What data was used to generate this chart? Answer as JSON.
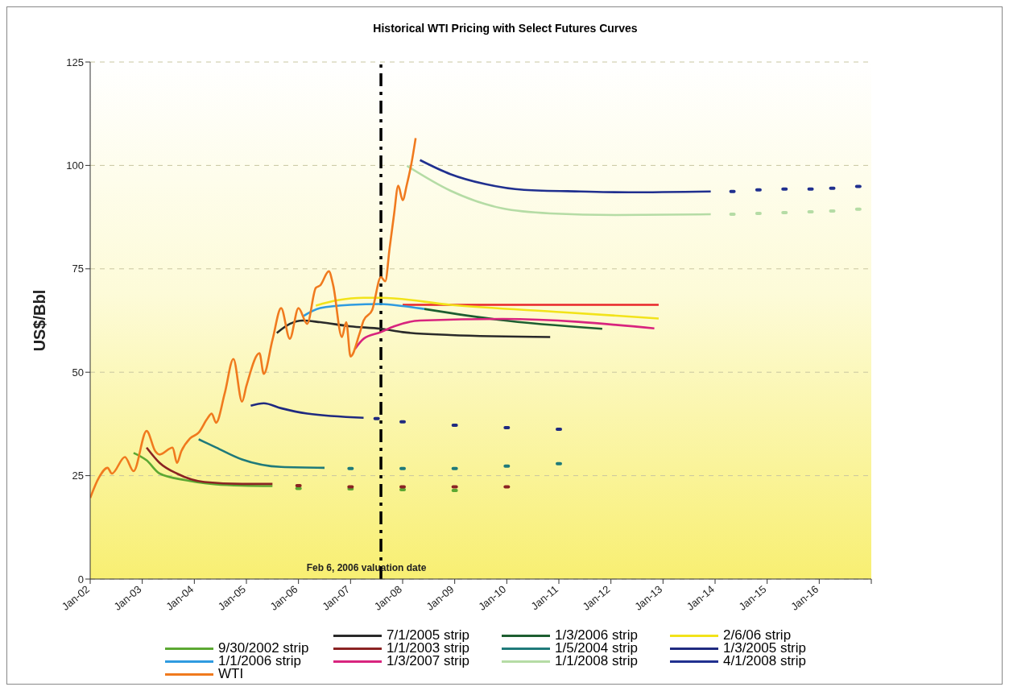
{
  "chart_data": {
    "type": "line",
    "title": "Historical WTI Pricing with Select Futures Curves",
    "ylabel": "US$/Bbl",
    "xlim": [
      "2002-01",
      "2017-01"
    ],
    "xticks": [
      {
        "value": "2002-01",
        "label": "Jan-02"
      },
      {
        "value": "2003-01",
        "label": "Jan-03"
      },
      {
        "value": "2004-01",
        "label": "Jan-04"
      },
      {
        "value": "2005-01",
        "label": "Jan-05"
      },
      {
        "value": "2006-01",
        "label": "Jan-06"
      },
      {
        "value": "2007-01",
        "label": "Jan-07"
      },
      {
        "value": "2008-01",
        "label": "Jan-08"
      },
      {
        "value": "2009-01",
        "label": "Jan-09"
      },
      {
        "value": "2010-01",
        "label": "Jan-10"
      },
      {
        "value": "2011-01",
        "label": "Jan-11"
      },
      {
        "value": "2012-01",
        "label": "Jan-12"
      },
      {
        "value": "2013-01",
        "label": "Jan-13"
      },
      {
        "value": "2014-01",
        "label": "Jan-14"
      },
      {
        "value": "2015-01",
        "label": "Jan-15"
      },
      {
        "value": "2016-01",
        "label": "Jan-16"
      },
      {
        "value": "2017-01",
        "label": null
      }
    ],
    "ylim": [
      0,
      125
    ],
    "yticks": [
      0,
      25,
      50,
      75,
      100,
      125
    ],
    "grid": "y",
    "legend": "bottom",
    "line_style": "solid",
    "ref_lines": [
      {
        "axis": "x",
        "value": "2007-08",
        "label": "Feb 6, 2006 valuation date",
        "color": "#000000",
        "line_style": "dashdot"
      }
    ],
    "series": [
      {
        "color": "#e8262a",
        "x": [
          "2008-01",
          "2010-06",
          "2012-12"
        ],
        "values": [
          66.3,
          66.3,
          66.3
        ]
      },
      {
        "name": "7/1/2005 strip",
        "color": "#2a2a2a",
        "x": [
          "2005-08",
          "2005-11",
          "2006-02",
          "2006-06",
          "2007-01",
          "2007-08",
          "2008-01",
          "2008-12",
          "2010-11"
        ],
        "values": [
          59.5,
          61.7,
          62.5,
          62.1,
          61.1,
          60.5,
          59.7,
          59.0,
          58.5
        ]
      },
      {
        "name": "1/3/2006 strip",
        "color": "#1d5e30",
        "x": [
          "2008-06",
          "2009-11",
          "2011-11"
        ],
        "values": [
          65.3,
          62.7,
          60.5
        ]
      },
      {
        "name": "2/6/06 strip",
        "color": "#f2e31a",
        "x": [
          "2006-05",
          "2006-10",
          "2007-04",
          "2007-08",
          "2008-12",
          "2011-02",
          "2012-12"
        ],
        "values": [
          66.1,
          67.4,
          68.0,
          68.0,
          66.3,
          64.5,
          63.0
        ]
      },
      {
        "name": "9/30/2002 strip",
        "color": "#5ca832",
        "x": [
          "2002-11",
          "2003-02",
          "2003-05",
          "2003-11",
          "2004-06",
          "2004-12",
          "2005-07",
          "2005-10",
          "2006-01",
          "2006-07",
          "2007-01",
          "2007-07",
          "2008-01",
          "2008-07",
          "2009-01"
        ],
        "values": [
          30.5,
          28.7,
          25.5,
          23.9,
          22.9,
          22.6,
          22.5,
          null,
          21.9,
          null,
          21.8,
          null,
          21.6,
          null,
          21.4
        ]
      },
      {
        "name": "1/1/2003 strip",
        "color": "#8b2323",
        "x": [
          "2003-02",
          "2003-05",
          "2003-09",
          "2004-03",
          "2004-12",
          "2005-07",
          "2005-10",
          "2006-01",
          "2006-07",
          "2007-01",
          "2007-07",
          "2008-01",
          "2008-07",
          "2009-01",
          "2009-07",
          "2010-01"
        ],
        "values": [
          31.8,
          28.1,
          25.5,
          23.5,
          23.0,
          23.0,
          null,
          22.6,
          null,
          22.3,
          null,
          22.3,
          null,
          22.3,
          null,
          22.3
        ]
      },
      {
        "name": "1/5/2004 strip",
        "color": "#1f7a7a",
        "x": [
          "2004-02",
          "2004-06",
          "2004-12",
          "2005-09",
          "2006-07",
          "2006-10",
          "2007-01",
          "2007-07",
          "2008-01",
          "2008-07",
          "2009-01",
          "2009-07",
          "2010-01",
          "2010-07",
          "2011-01"
        ],
        "values": [
          33.8,
          31.8,
          28.9,
          27.1,
          26.9,
          null,
          26.7,
          null,
          26.7,
          null,
          26.7,
          null,
          27.3,
          null,
          27.9
        ]
      },
      {
        "name": "1/3/2005 strip",
        "color": "#1f2a80",
        "x": [
          "2005-02",
          "2005-05",
          "2005-09",
          "2006-03",
          "2007-04",
          "2007-06",
          "2007-07",
          "2007-10",
          "2008-01",
          "2008-07",
          "2009-01",
          "2009-07",
          "2010-01",
          "2010-07",
          "2011-01"
        ],
        "values": [
          41.9,
          42.5,
          41.3,
          40.0,
          39.0,
          null,
          38.8,
          null,
          38.0,
          null,
          37.2,
          null,
          36.6,
          null,
          36.2
        ]
      },
      {
        "name": "1/1/2006 strip",
        "color": "#2f9be0",
        "x": [
          "2006-02",
          "2006-06",
          "2007-01",
          "2007-08",
          "2008-01",
          "2008-06"
        ],
        "values": [
          63.5,
          65.5,
          66.3,
          66.5,
          66.0,
          65.3
        ]
      },
      {
        "name": "1/3/2007 strip",
        "color": "#d8247e",
        "x": [
          "2007-02",
          "2007-04",
          "2007-08",
          "2007-11",
          "2008-05",
          "2009-12",
          "2012-11"
        ],
        "values": [
          55.6,
          58.1,
          59.7,
          61.1,
          62.5,
          62.9,
          60.6
        ]
      },
      {
        "name": "1/1/2008 strip",
        "color": "#b5dca5",
        "x": [
          "2008-02",
          "2008-12",
          "2009-12",
          "2010-11",
          "2012-02",
          "2013-12",
          "2014-02",
          "2014-05",
          "2014-08",
          "2014-11",
          "2015-02",
          "2015-05",
          "2015-08",
          "2015-11",
          "2016-01",
          "2016-04",
          "2016-07",
          "2016-10"
        ],
        "values": [
          99.9,
          93.9,
          89.6,
          88.4,
          88.0,
          88.2,
          null,
          88.2,
          null,
          88.4,
          null,
          88.6,
          null,
          88.8,
          null,
          89.0,
          null,
          89.4
        ]
      },
      {
        "name": "4/1/2008 strip",
        "color": "#20308f",
        "x": [
          "2008-05",
          "2008-12",
          "2009-08",
          "2010-05",
          "2011-06",
          "2012-05",
          "2013-12",
          "2014-02",
          "2014-05",
          "2014-08",
          "2014-11",
          "2015-02",
          "2015-05",
          "2015-08",
          "2015-11",
          "2016-01",
          "2016-04",
          "2016-07",
          "2016-10"
        ],
        "values": [
          101.3,
          97.9,
          95.5,
          94.1,
          93.7,
          93.5,
          93.7,
          null,
          93.7,
          null,
          94.1,
          null,
          94.3,
          null,
          94.3,
          null,
          94.5,
          null,
          94.9
        ]
      },
      {
        "name": "WTI",
        "color": "#f07a1e",
        "x": [
          "2002-01",
          "2002-03",
          "2002-05",
          "2002-06",
          "2002-09",
          "2002-11",
          "2003-02",
          "2003-04",
          "2003-05",
          "2003-08",
          "2003-09",
          "2003-10",
          "2003-12",
          "2004-02",
          "2004-04",
          "2004-05",
          "2004-06",
          "2004-08",
          "2004-10",
          "2004-12",
          "2005-01",
          "2005-04",
          "2005-05",
          "2005-07",
          "2005-09",
          "2005-11",
          "2006-01",
          "2006-03",
          "2006-05",
          "2006-06",
          "2006-08",
          "2006-09",
          "2006-11",
          "2006-12",
          "2007-01",
          "2007-03",
          "2007-04",
          "2007-06",
          "2007-08",
          "2007-09",
          "2007-10",
          "2007-11",
          "2007-12",
          "2008-01",
          "2008-02",
          "2008-03",
          "2008-04"
        ],
        "values": [
          19.6,
          24.5,
          26.9,
          25.5,
          29.5,
          26.1,
          35.8,
          30.9,
          30.1,
          31.8,
          28.1,
          30.9,
          34.0,
          35.4,
          38.8,
          40.0,
          37.8,
          44.9,
          53.2,
          42.9,
          46.7,
          54.6,
          49.6,
          57.8,
          65.5,
          58.1,
          65.5,
          61.7,
          70.4,
          71.0,
          74.4,
          71.0,
          58.5,
          62.1,
          53.8,
          59.1,
          62.5,
          65.1,
          73.0,
          72.0,
          80.0,
          88.0,
          95.1,
          91.6,
          95.5,
          100.3,
          106.6
        ]
      }
    ]
  }
}
